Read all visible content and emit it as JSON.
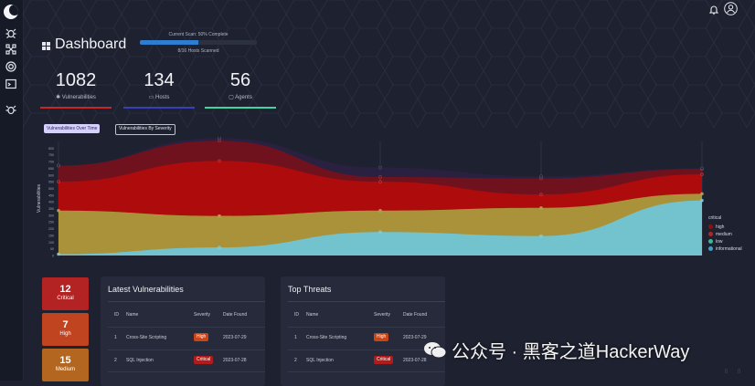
{
  "header": {
    "title": "Dashboard",
    "scan_label": "Current Scan: 50% Complete",
    "scan_progress": 0.5,
    "scan_sub": "8/16 Hosts Scanned"
  },
  "stats": [
    {
      "value": "1082",
      "label": "Vulnerabilities",
      "icon": "bug-icon",
      "color": "#c62828"
    },
    {
      "value": "134",
      "label": "Hosts",
      "icon": "host-icon",
      "color": "#3a3fb8"
    },
    {
      "value": "56",
      "label": "Agents",
      "icon": "agent-icon",
      "color": "#3fd6a3"
    }
  ],
  "chart_tabs": {
    "over_time": "Vulnerabilities Over Time",
    "by_severity": "Vulnerabilities By Severity"
  },
  "chart_data": {
    "type": "area",
    "stacked": true,
    "x": [
      0,
      1,
      2,
      3,
      4
    ],
    "ylabel": "Vulnerabilities",
    "ylim": [
      0,
      850
    ],
    "yticks": [
      0,
      50,
      100,
      150,
      200,
      250,
      300,
      350,
      400,
      450,
      500,
      550,
      600,
      650,
      700,
      750,
      800
    ],
    "series": [
      {
        "name": "informational",
        "values": [
          10,
          60,
          175,
          145,
          410
        ],
        "color": "#6fc6d6"
      },
      {
        "name": "low",
        "values": [
          325,
          235,
          160,
          210,
          50
        ],
        "color": "#a99a3c"
      },
      {
        "name": "medium",
        "values": [
          215,
          410,
          215,
          100,
          145
        ],
        "color": "#b00c0c"
      },
      {
        "name": "high",
        "values": [
          120,
          150,
          35,
          120,
          40
        ],
        "color": "#74121c"
      },
      {
        "name": "critical",
        "values": [
          0,
          20,
          70,
          15,
          5
        ],
        "color": "#2a2240"
      }
    ],
    "legend_title": "critical",
    "legend": [
      "high",
      "medium",
      "low",
      "informational"
    ],
    "legend_colors": [
      "#8b1010",
      "#b22626",
      "#3fb59c",
      "#3fa0c6"
    ],
    "legend_position": "right",
    "grid": false
  },
  "severity_counts": [
    {
      "value": "12",
      "label": "Critical",
      "color": "#b42323"
    },
    {
      "value": "7",
      "label": "High",
      "color": "#c14421"
    },
    {
      "value": "15",
      "label": "Medium",
      "color": "#b3661f"
    }
  ],
  "latest": {
    "title": "Latest Vulnerabilities",
    "headers": [
      "ID",
      "Name",
      "Severity",
      "Date Found"
    ],
    "rows": [
      {
        "id": "1",
        "name": "Cross-Site Scripting",
        "severity": "High",
        "date": "2023-07-29",
        "color": "#c94516"
      },
      {
        "id": "2",
        "name": "SQL Injection",
        "severity": "Critical",
        "date": "2023-07-28",
        "color": "#b01c1c"
      }
    ]
  },
  "threats": {
    "title": "Top Threats",
    "headers": [
      "ID",
      "Name",
      "Severity",
      "Date Found"
    ],
    "rows": [
      {
        "id": "1",
        "name": "Cross-Site Scripting",
        "severity": "High",
        "date": "2023-07-29",
        "color": "#c94516"
      },
      {
        "id": "2",
        "name": "SQL Injection",
        "severity": "Critical",
        "date": "2023-07-28",
        "color": "#b01c1c"
      }
    ]
  },
  "watermark": "公众号 · 黑客之道HackerWay"
}
